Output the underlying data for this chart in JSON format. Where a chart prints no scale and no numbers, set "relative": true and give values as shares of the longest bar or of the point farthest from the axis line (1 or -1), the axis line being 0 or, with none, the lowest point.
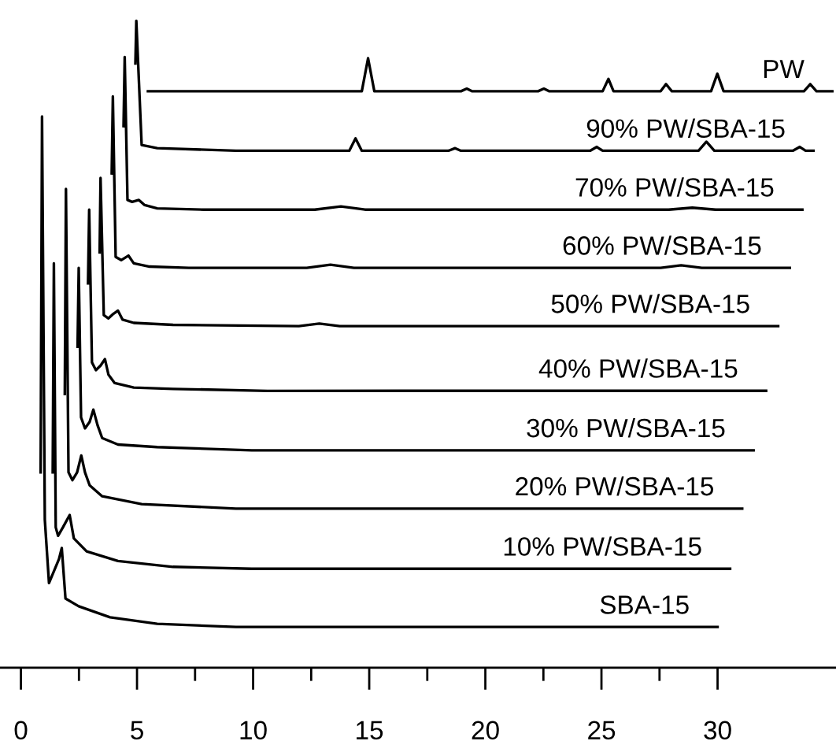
{
  "chart_data": {
    "type": "line",
    "relative": true,
    "legend": false,
    "grid": false,
    "marker": "none",
    "line_style": "solid",
    "xlim": [
      -0.9,
      35.1
    ],
    "xticks": [
      0,
      {
        "value": 2.5,
        "label": null
      },
      5,
      {
        "value": 7.5,
        "label": null
      },
      10,
      {
        "value": 12.5,
        "label": null
      },
      15,
      {
        "value": 17.5,
        "label": null
      },
      20,
      {
        "value": 22.5,
        "label": null
      },
      25,
      {
        "value": 27.5,
        "label": null
      },
      30
    ],
    "series": [
      {
        "name": "SBA-15",
        "color": "#000000",
        "x": [
          0.85,
          0.91,
          1.03,
          1.21,
          1.64,
          1.76,
          1.92,
          2.49,
          3.84,
          5.87,
          9.26,
          30.0
        ],
        "values": [
          0.302,
          0.852,
          0.229,
          0.131,
          0.168,
          0.185,
          0.107,
          0.095,
          0.078,
          0.068,
          0.063,
          0.063
        ]
      },
      {
        "name": "10% PW/SBA-15",
        "color": "#000000",
        "x": [
          1.37,
          1.42,
          1.5,
          1.6,
          1.81,
          2.1,
          2.28,
          2.83,
          4.18,
          6.55,
          9.94,
          30.54
        ],
        "values": [
          0.302,
          0.625,
          0.217,
          0.204,
          0.217,
          0.236,
          0.2,
          0.18,
          0.165,
          0.156,
          0.153,
          0.153
        ]
      },
      {
        "name": "20% PW/SBA-15",
        "color": "#000000",
        "x": [
          1.89,
          1.94,
          2.05,
          2.22,
          2.42,
          2.6,
          2.76,
          2.96,
          3.5,
          5.2,
          9.26,
          31.06
        ],
        "values": [
          0.423,
          0.74,
          0.302,
          0.29,
          0.302,
          0.328,
          0.302,
          0.282,
          0.265,
          0.253,
          0.246,
          0.246
        ]
      },
      {
        "name": "30% PW/SBA-15",
        "color": "#000000",
        "x": [
          2.44,
          2.49,
          2.59,
          2.76,
          2.96,
          3.12,
          3.3,
          3.5,
          4.18,
          5.87,
          9.94,
          31.55
        ],
        "values": [
          0.496,
          0.618,
          0.387,
          0.37,
          0.38,
          0.399,
          0.375,
          0.355,
          0.345,
          0.341,
          0.336,
          0.336
        ]
      },
      {
        "name": "40% PW/SBA-15",
        "color": "#000000",
        "x": [
          2.89,
          2.94,
          3.06,
          3.23,
          3.43,
          3.62,
          3.77,
          4.04,
          4.86,
          6.55,
          10.62,
          32.09
        ],
        "values": [
          0.594,
          0.708,
          0.472,
          0.46,
          0.467,
          0.477,
          0.453,
          0.44,
          0.433,
          0.431,
          0.428,
          0.428
        ]
      },
      {
        "name": "50% PW/SBA-15",
        "color": "#000000",
        "x": [
          3.39,
          3.43,
          3.57,
          3.77,
          3.98,
          4.18,
          4.38,
          4.86,
          6.55,
          11.97,
          12.85,
          13.73,
          32.61
        ],
        "values": [
          0.642,
          0.757,
          0.545,
          0.54,
          0.547,
          0.552,
          0.538,
          0.533,
          0.53,
          0.528,
          0.532,
          0.528,
          0.528
        ]
      },
      {
        "name": "60% PW/SBA-15",
        "color": "#000000",
        "x": [
          3.91,
          3.96,
          4.08,
          4.32,
          4.63,
          4.86,
          5.54,
          7.23,
          12.31,
          13.33,
          14.34,
          27.55,
          28.43,
          29.32,
          33.11
        ],
        "values": [
          0.764,
          0.883,
          0.635,
          0.63,
          0.637,
          0.625,
          0.62,
          0.618,
          0.618,
          0.623,
          0.618,
          0.618,
          0.622,
          0.618,
          0.618
        ]
      },
      {
        "name": "70% PW/SBA-15",
        "color": "#000000",
        "x": [
          4.42,
          4.47,
          4.59,
          4.79,
          5.08,
          5.33,
          5.87,
          7.91,
          12.65,
          13.78,
          14.82,
          27.89,
          28.91,
          29.92,
          33.65
        ],
        "values": [
          0.837,
          0.944,
          0.723,
          0.72,
          0.723,
          0.715,
          0.71,
          0.708,
          0.708,
          0.713,
          0.708,
          0.708,
          0.711,
          0.708,
          0.708
        ]
      },
      {
        "name": "90% PW/SBA-15",
        "color": "#000000",
        "x": [
          4.93,
          4.97,
          5.2,
          5.87,
          9.26,
          14.14,
          14.41,
          14.68,
          18.41,
          18.7,
          18.95,
          24.51,
          24.8,
          25.05,
          29.18,
          29.52,
          29.86,
          33.24,
          33.54,
          33.79,
          34.13
        ],
        "values": [
          0.934,
          1.0,
          0.808,
          0.803,
          0.799,
          0.799,
          0.818,
          0.799,
          0.799,
          0.803,
          0.799,
          0.799,
          0.805,
          0.799,
          0.799,
          0.813,
          0.799,
          0.799,
          0.805,
          0.799,
          0.799
        ]
      },
      {
        "name": "PW",
        "color": "#000000",
        "x": [
          5.47,
          14.68,
          14.95,
          15.22,
          18.95,
          19.2,
          19.42,
          22.27,
          22.52,
          22.74,
          25.05,
          25.3,
          25.52,
          27.55,
          27.78,
          28.03,
          29.72,
          29.99,
          30.26,
          33.72,
          33.99,
          34.26,
          34.94
        ],
        "values": [
          0.891,
          0.891,
          0.942,
          0.891,
          0.891,
          0.895,
          0.891,
          0.891,
          0.895,
          0.891,
          0.891,
          0.91,
          0.891,
          0.891,
          0.902,
          0.891,
          0.891,
          0.918,
          0.891,
          0.891,
          0.902,
          0.891,
          0.891
        ]
      }
    ]
  }
}
